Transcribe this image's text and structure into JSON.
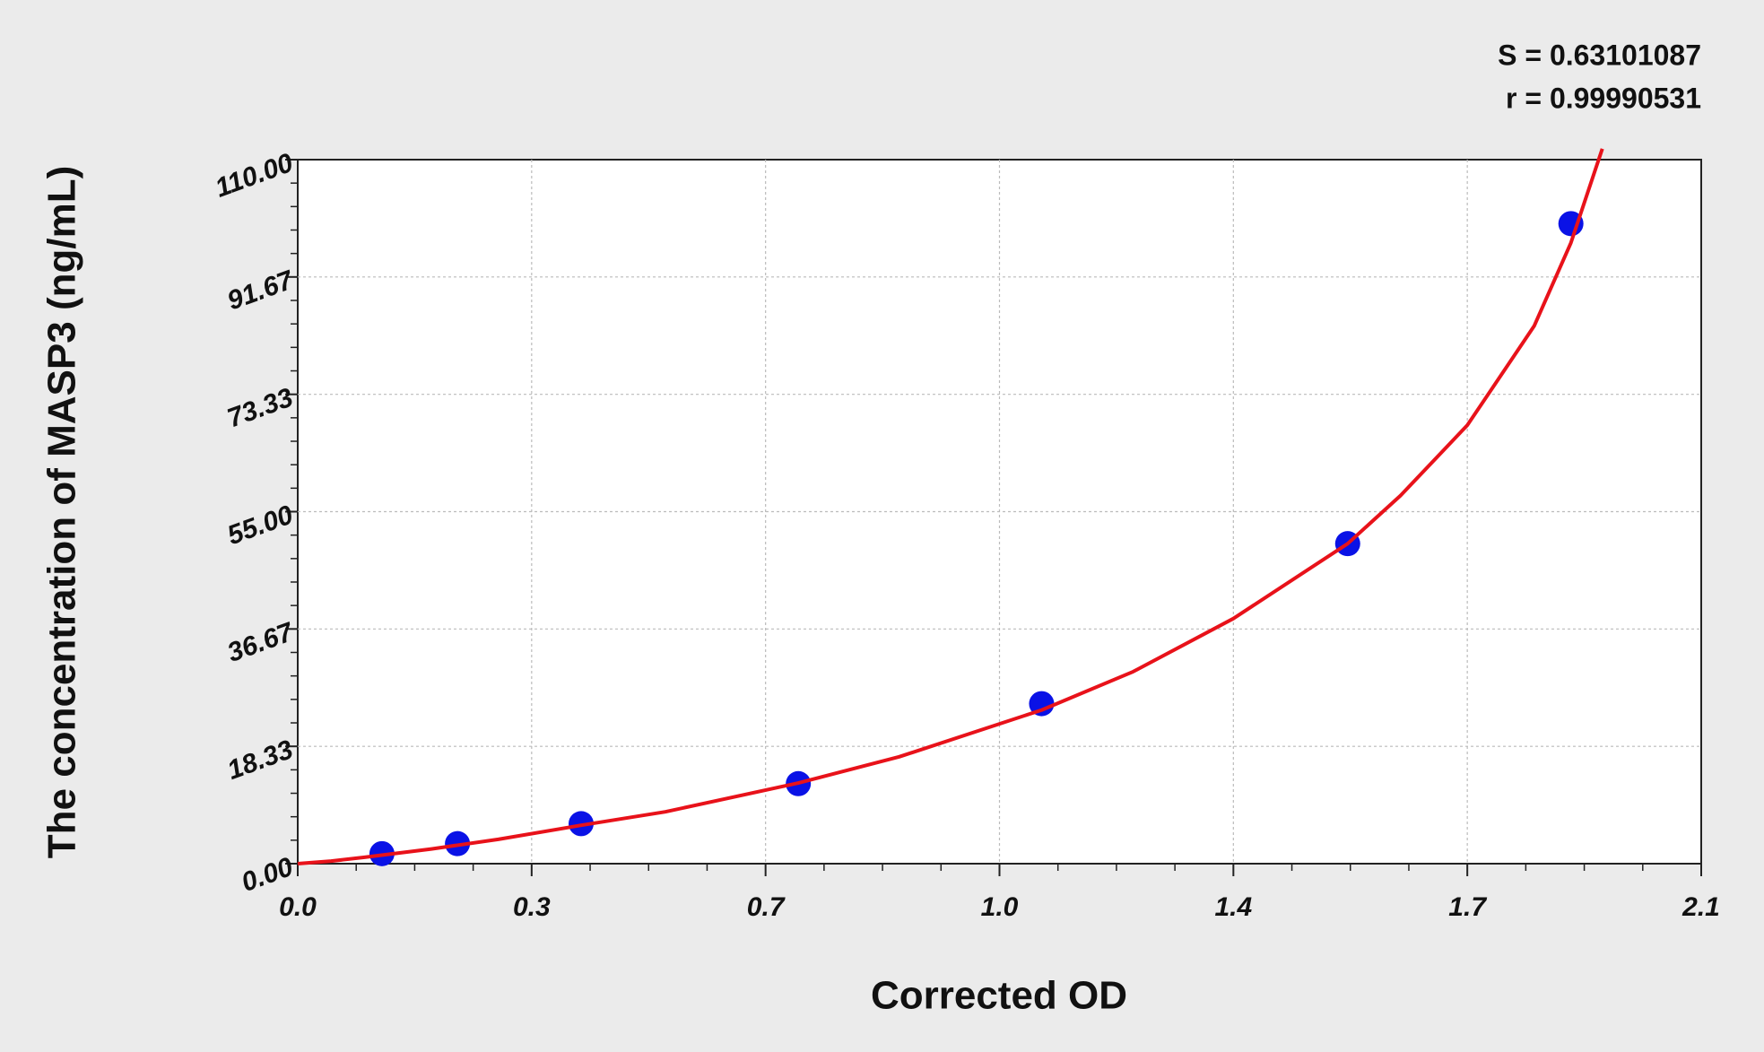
{
  "chart_data": {
    "type": "scatter",
    "x_label": "Corrected OD",
    "y_label": "The concentration of MASP3 (ng/mL)",
    "annotations": [
      "S = 0.63101087",
      "r = 0.99990531"
    ],
    "xlim": [
      0,
      2.1
    ],
    "xticks": [
      {
        "value": 0,
        "label": "0.0"
      },
      {
        "value": 0.35,
        "label": "0.3"
      },
      {
        "value": 0.7,
        "label": "0.7"
      },
      {
        "value": 1.05,
        "label": "1.0"
      },
      {
        "value": 1.4,
        "label": "1.4"
      },
      {
        "value": 1.75,
        "label": "1.7"
      },
      {
        "value": 2.1,
        "label": "2.1"
      }
    ],
    "ylim": [
      0,
      110
    ],
    "yticks": [
      {
        "value": 0,
        "label": "0.00"
      },
      18.33,
      36.67,
      {
        "value": 55,
        "label": "55.00"
      },
      73.33,
      91.67,
      {
        "value": 110,
        "label": "110.00"
      }
    ],
    "grid": true,
    "series": [
      {
        "type": "scatter",
        "color": "#0a12e6",
        "x": [
          0.126,
          0.239,
          0.424,
          0.749,
          1.113,
          1.571,
          1.905
        ],
        "values": [
          1.56,
          3.13,
          6.25,
          12.5,
          25,
          50,
          100
        ]
      },
      {
        "type": "line",
        "color": "#e8121a",
        "x": [
          0,
          0.05,
          0.1,
          0.2,
          0.3,
          0.424,
          0.55,
          0.749,
          0.9,
          1.113,
          1.25,
          1.4,
          1.571,
          1.65,
          1.75,
          1.85,
          1.905,
          1.952
        ],
        "values": [
          0,
          0.4,
          1.0,
          2.3,
          3.8,
          6.0,
          8.1,
          12.6,
          16.7,
          24.0,
          30.0,
          38.3,
          50.0,
          57.5,
          68.5,
          84.0,
          97.0,
          111.7
        ]
      }
    ]
  }
}
